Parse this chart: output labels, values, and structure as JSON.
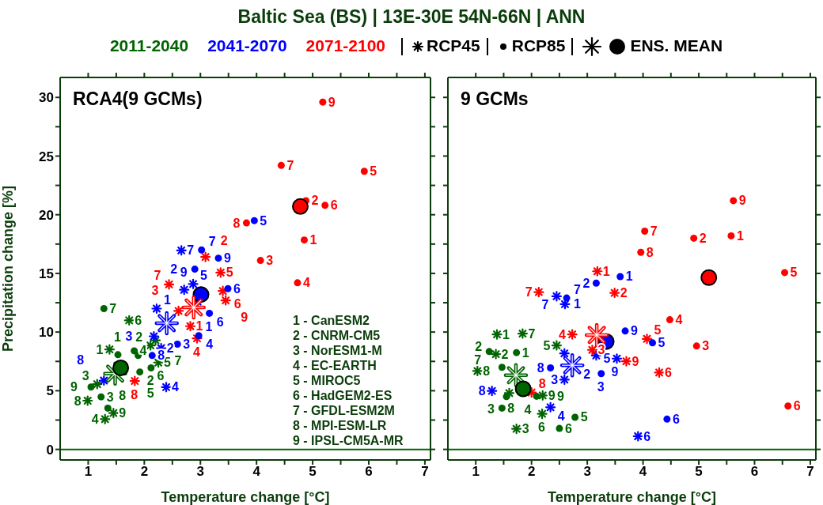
{
  "chart_data": [
    {
      "type": "scatter",
      "title": "Baltic Sea (BS) | 13E-30E 54N-66N | ANN",
      "subtitle": "RCA4(9 GCMs)",
      "xlabel": "Temperature change [°C]",
      "ylabel": "Precipitation change [%]",
      "legend": "top",
      "annotations": [
        "RCP45",
        "RCP85",
        "ENS. MEAN",
        "1 - CanESM2",
        "2 - CNRM-CM5",
        "3 - NorESM1-M",
        "4 - EC-EARTH",
        "5 - MIROC5",
        "6 - HadGEM2-ES",
        "7 - GFDL-ESM2M",
        "8 - MPI-ESM-LR",
        "9 - IPSL-CM5A-MR",
        {
          "text": "1",
          "x": 1.38,
          "y": 8.52
        },
        {
          "text": "2",
          "x": 2.11,
          "y": 8.86
        },
        {
          "text": "3",
          "x": 1.16,
          "y": 5.56
        },
        {
          "text": "4",
          "x": 1.3,
          "y": 2.58
        },
        {
          "text": "5",
          "x": 2.25,
          "y": 7.4
        },
        {
          "text": "6",
          "x": 1.73,
          "y": 11.0
        },
        {
          "text": "7",
          "x": 2.2,
          "y": 9.3
        },
        {
          "text": "8",
          "x": 0.99,
          "y": 4.15
        },
        {
          "text": "9",
          "x": 1.45,
          "y": 3.1
        },
        {
          "text": "1",
          "x": 1.53,
          "y": 8.07
        },
        {
          "text": "2",
          "x": 1.92,
          "y": 6.6
        },
        {
          "text": "3",
          "x": 1.23,
          "y": 4.48
        },
        {
          "text": "4",
          "x": 1.82,
          "y": 8.4
        },
        {
          "text": "5",
          "x": 2.12,
          "y": 6.95
        },
        {
          "text": "6",
          "x": 1.89,
          "y": 8.0
        },
        {
          "text": "7",
          "x": 1.28,
          "y": 12.0
        },
        {
          "text": "8",
          "x": 1.35,
          "y": 3.52
        },
        {
          "text": "9",
          "x": 1.05,
          "y": 5.31
        },
        {
          "text": "1",
          "x": 2.22,
          "y": 12.0
        },
        {
          "text": "2",
          "x": 2.3,
          "y": 8.63
        },
        {
          "text": "3",
          "x": 2.17,
          "y": 9.64
        },
        {
          "text": "4",
          "x": 2.39,
          "y": 5.31
        },
        {
          "text": "5",
          "x": 2.87,
          "y": 14.1
        },
        {
          "text": "6",
          "x": 2.95,
          "y": 12.6
        },
        {
          "text": "7",
          "x": 2.66,
          "y": 16.96
        },
        {
          "text": "8",
          "x": 1.28,
          "y": 5.87
        },
        {
          "text": "9",
          "x": 2.71,
          "y": 13.6
        },
        {
          "text": "1",
          "x": 3.16,
          "y": 11.6
        },
        {
          "text": "2",
          "x": 2.9,
          "y": 15.36
        },
        {
          "text": "3",
          "x": 2.59,
          "y": 8.97
        },
        {
          "text": "4",
          "x": 2.97,
          "y": 9.69
        },
        {
          "text": "5",
          "x": 3.96,
          "y": 19.5
        },
        {
          "text": "6",
          "x": 3.49,
          "y": 13.7
        },
        {
          "text": "7",
          "x": 3.02,
          "y": 17.0
        },
        {
          "text": "8",
          "x": 2.14,
          "y": 8.0
        },
        {
          "text": "9",
          "x": 3.32,
          "y": 16.3
        },
        {
          "text": "1",
          "x": 2.82,
          "y": 10.5
        },
        {
          "text": "2",
          "x": 3.09,
          "y": 16.4
        },
        {
          "text": "3",
          "x": 2.61,
          "y": 11.8
        },
        {
          "text": "4",
          "x": 2.94,
          "y": 9.46
        },
        {
          "text": "5",
          "x": 3.36,
          "y": 15.07
        },
        {
          "text": "6",
          "x": 3.4,
          "y": 13.5
        },
        {
          "text": "7",
          "x": 2.44,
          "y": 14.06
        },
        {
          "text": "8",
          "x": 1.83,
          "y": 5.83
        },
        {
          "text": "9",
          "x": 3.45,
          "y": 12.7
        },
        {
          "text": "1",
          "x": 4.85,
          "y": 17.85
        },
        {
          "text": "2",
          "x": 4.88,
          "y": 21.2
        },
        {
          "text": "3",
          "x": 4.07,
          "y": 16.1
        },
        {
          "text": "4",
          "x": 4.73,
          "y": 14.2
        },
        {
          "text": "5",
          "x": 5.92,
          "y": 23.7
        },
        {
          "text": "6",
          "x": 5.22,
          "y": 20.8
        },
        {
          "text": "7",
          "x": 4.44,
          "y": 24.2
        },
        {
          "text": "8",
          "x": 3.82,
          "y": 19.3
        },
        {
          "text": "9",
          "x": 5.18,
          "y": 29.6
        }
      ],
      "xlim": [
        0.5,
        7.1
      ],
      "ylim": [
        -0.9,
        31.7
      ],
      "xticks": [
        1,
        {
          "value": 1.5,
          "label": null
        },
        2,
        {
          "value": 2.5,
          "label": null
        },
        3,
        {
          "value": 3.5,
          "label": null
        },
        4,
        {
          "value": 4.5,
          "label": null
        },
        5,
        {
          "value": 5.5,
          "label": null
        },
        6,
        {
          "value": 6.5,
          "label": null
        },
        7
      ],
      "yticks": [
        0,
        {
          "value": 2.5,
          "label": null
        },
        5,
        {
          "value": 7.5,
          "label": null
        },
        10,
        {
          "value": 12.5,
          "label": null
        },
        15,
        {
          "value": 17.5,
          "label": null
        },
        20,
        {
          "value": 22.5,
          "label": null
        },
        25,
        {
          "value": 27.5,
          "label": null
        },
        30
      ],
      "ref_lines": [
        {
          "axis": "y",
          "value": 0,
          "color": "#006400"
        }
      ],
      "series": [
        {
          "name": "2011-2040",
          "color": "#006400",
          "marker": "cross",
          "x": [
            1.38,
            2.11,
            1.16,
            1.3,
            2.25,
            1.73,
            2.2,
            0.99,
            1.45
          ],
          "values": [
            8.52,
            8.86,
            5.56,
            2.58,
            7.4,
            11.0,
            9.3,
            4.15,
            3.1
          ]
        },
        {
          "color": "#006400",
          "marker": "circle",
          "x": [
            1.53,
            1.92,
            1.23,
            1.82,
            2.12,
            1.89,
            1.28,
            1.35,
            1.05
          ],
          "values": [
            8.07,
            6.6,
            4.48,
            8.4,
            6.95,
            8.0,
            12.0,
            3.52,
            5.31
          ]
        },
        {
          "name": "2041-2070",
          "color": "#0000ff",
          "marker": "cross",
          "x": [
            2.22,
            2.3,
            2.17,
            2.39,
            2.87,
            2.95,
            2.66,
            1.28,
            2.71
          ],
          "values": [
            12.0,
            8.63,
            9.64,
            5.31,
            14.1,
            12.6,
            16.96,
            5.87,
            13.6
          ]
        },
        {
          "color": "#0000ff",
          "marker": "circle",
          "x": [
            3.16,
            2.9,
            2.59,
            2.97,
            3.96,
            3.49,
            3.02,
            2.14,
            3.32
          ],
          "values": [
            11.6,
            15.36,
            8.97,
            9.69,
            19.5,
            13.7,
            17.0,
            8.0,
            16.3
          ]
        },
        {
          "name": "2071-2100",
          "color": "#ff0000",
          "marker": "cross",
          "x": [
            2.82,
            3.09,
            2.61,
            2.94,
            3.36,
            3.4,
            2.44,
            1.83,
            3.45
          ],
          "values": [
            10.5,
            16.4,
            11.8,
            9.46,
            15.07,
            13.5,
            14.06,
            5.83,
            12.7
          ]
        },
        {
          "color": "#ff0000",
          "marker": "circle",
          "x": [
            4.85,
            4.88,
            4.07,
            4.73,
            5.92,
            5.22,
            4.44,
            3.82,
            5.18
          ],
          "values": [
            17.85,
            21.2,
            16.1,
            14.2,
            23.7,
            20.8,
            24.2,
            19.3,
            29.6
          ]
        },
        {
          "color": "#006400",
          "marker": "cross",
          "x": [
            1.48
          ],
          "values": [
            6.46
          ]
        },
        {
          "color": "#006400",
          "marker": "circle",
          "x": [
            1.58
          ],
          "values": [
            6.95
          ]
        },
        {
          "color": "#0000ff",
          "marker": "cross",
          "x": [
            2.4
          ],
          "values": [
            10.76
          ]
        },
        {
          "color": "#0000ff",
          "marker": "circle",
          "x": [
            3.01
          ],
          "values": [
            13.2
          ]
        },
        {
          "color": "#ff0000",
          "marker": "cross",
          "x": [
            2.88
          ],
          "values": [
            12.1
          ]
        },
        {
          "color": "#ff0000",
          "marker": "circle",
          "x": [
            4.78
          ],
          "values": [
            20.7
          ]
        }
      ]
    },
    {
      "type": "scatter",
      "subtitle": "9 GCMs",
      "xlabel": "Temperature change [°C]",
      "tick_labels": "x",
      "annotations": [
        {
          "text": "1",
          "x": 1.38,
          "y": 9.8
        },
        {
          "text": "2",
          "x": 1.36,
          "y": 8.12
        },
        {
          "text": "3",
          "x": 1.73,
          "y": 1.75
        },
        {
          "text": "4",
          "x": 1.6,
          "y": 4.8
        },
        {
          "text": "5",
          "x": 2.45,
          "y": 8.86
        },
        {
          "text": "6",
          "x": 2.19,
          "y": 3.03
        },
        {
          "text": "7",
          "x": 1.84,
          "y": 9.87
        },
        {
          "text": "8",
          "x": 1.03,
          "y": 6.68
        },
        {
          "text": "9",
          "x": 2.2,
          "y": 4.6
        },
        {
          "text": "1",
          "x": 1.73,
          "y": 8.25
        },
        {
          "text": "2",
          "x": 1.47,
          "y": 7.0
        },
        {
          "text": "3",
          "x": 1.55,
          "y": 4.5
        },
        {
          "text": "5",
          "x": 2.78,
          "y": 2.74
        },
        {
          "text": "6",
          "x": 2.5,
          "y": 1.79
        },
        {
          "text": "7",
          "x": 1.24,
          "y": 8.34
        },
        {
          "text": "8",
          "x": 1.47,
          "y": 3.52
        },
        {
          "text": "9",
          "x": 2.09,
          "y": 4.53
        },
        {
          "text": "1",
          "x": 2.6,
          "y": 12.38
        },
        {
          "text": "2",
          "x": 2.59,
          "y": 8.18
        },
        {
          "text": "3",
          "x": 2.59,
          "y": 5.94
        },
        {
          "text": "4",
          "x": 2.34,
          "y": 3.59
        },
        {
          "text": "5",
          "x": 3.53,
          "y": 7.74
        },
        {
          "text": "6",
          "x": 3.91,
          "y": 1.12
        },
        {
          "text": "7",
          "x": 2.45,
          "y": 13.05
        },
        {
          "text": "8",
          "x": 1.29,
          "y": 4.98
        },
        {
          "text": "9",
          "x": 3.16,
          "y": 8.0
        },
        {
          "text": "1",
          "x": 3.59,
          "y": 14.73
        },
        {
          "text": "2",
          "x": 3.16,
          "y": 14.17
        },
        {
          "text": "3",
          "x": 3.25,
          "y": 6.46
        },
        {
          "text": "5",
          "x": 4.17,
          "y": 9.08
        },
        {
          "text": "6",
          "x": 4.43,
          "y": 2.58
        },
        {
          "text": "7",
          "x": 2.63,
          "y": 12.9
        },
        {
          "text": "8",
          "x": 2.34,
          "y": 6.95
        },
        {
          "text": "9",
          "x": 3.68,
          "y": 10.09
        },
        {
          "text": "1",
          "x": 3.18,
          "y": 15.18
        },
        {
          "text": "2",
          "x": 3.49,
          "y": 13.34
        },
        {
          "text": "3",
          "x": 3.09,
          "y": 8.48
        },
        {
          "text": "4",
          "x": 2.73,
          "y": 9.8
        },
        {
          "text": "5",
          "x": 4.07,
          "y": 9.42
        },
        {
          "text": "6",
          "x": 4.29,
          "y": 6.55
        },
        {
          "text": "7",
          "x": 2.13,
          "y": 13.4
        },
        {
          "text": "8",
          "x": 2.0,
          "y": 4.85
        },
        {
          "text": "9",
          "x": 3.7,
          "y": 7.51
        },
        {
          "text": "1",
          "x": 5.58,
          "y": 18.2
        },
        {
          "text": "2",
          "x": 4.91,
          "y": 18.0
        },
        {
          "text": "3",
          "x": 4.96,
          "y": 8.81
        },
        {
          "text": "4",
          "x": 4.48,
          "y": 11.05
        },
        {
          "text": "5",
          "x": 6.54,
          "y": 15.07
        },
        {
          "text": "6",
          "x": 6.6,
          "y": 3.7
        },
        {
          "text": "7",
          "x": 4.03,
          "y": 18.6
        },
        {
          "text": "8",
          "x": 3.96,
          "y": 16.8
        },
        {
          "text": "9",
          "x": 5.62,
          "y": 21.2
        }
      ],
      "xlim": [
        0.5,
        7.1
      ],
      "ylim": [
        -0.9,
        31.7
      ],
      "xticks": [
        1,
        {
          "value": 1.5,
          "label": null
        },
        2,
        {
          "value": 2.5,
          "label": null
        },
        3,
        {
          "value": 3.5,
          "label": null
        },
        4,
        {
          "value": 4.5,
          "label": null
        },
        5,
        {
          "value": 5.5,
          "label": null
        },
        6,
        {
          "value": 6.5,
          "label": null
        },
        7
      ],
      "yticks": [
        0,
        {
          "value": 2.5,
          "label": null
        },
        5,
        {
          "value": 7.5,
          "label": null
        },
        10,
        {
          "value": 12.5,
          "label": null
        },
        15,
        {
          "value": 17.5,
          "label": null
        },
        20,
        {
          "value": 22.5,
          "label": null
        },
        25,
        {
          "value": 27.5,
          "label": null
        },
        30
      ],
      "ref_lines": [
        {
          "axis": "y",
          "value": 0,
          "color": "#006400"
        }
      ],
      "series": [
        {
          "color": "#006400",
          "marker": "cross",
          "x": [
            1.38,
            1.36,
            1.73,
            1.6,
            2.45,
            2.19,
            1.84,
            1.03,
            2.2
          ],
          "values": [
            9.8,
            8.12,
            1.75,
            4.8,
            8.86,
            3.03,
            9.87,
            6.68,
            4.6
          ]
        },
        {
          "color": "#006400",
          "marker": "circle",
          "x": [
            1.73,
            1.47,
            1.55,
            null,
            2.78,
            2.5,
            1.24,
            1.47,
            2.09
          ],
          "values": [
            8.25,
            7.0,
            4.5,
            null,
            2.74,
            1.79,
            8.34,
            3.52,
            4.53
          ]
        },
        {
          "color": "#0000ff",
          "marker": "cross",
          "x": [
            2.6,
            2.59,
            2.59,
            2.34,
            3.53,
            3.91,
            2.45,
            1.29,
            3.16
          ],
          "values": [
            12.38,
            8.18,
            5.94,
            3.59,
            7.74,
            1.12,
            13.05,
            4.98,
            8.0
          ]
        },
        {
          "color": "#0000ff",
          "marker": "circle",
          "x": [
            3.59,
            3.16,
            3.25,
            null,
            4.17,
            4.43,
            2.63,
            2.34,
            3.68
          ],
          "values": [
            14.73,
            14.17,
            6.46,
            null,
            9.08,
            2.58,
            12.9,
            6.95,
            10.09
          ]
        },
        {
          "color": "#ff0000",
          "marker": "cross",
          "x": [
            3.18,
            3.49,
            3.09,
            2.73,
            4.07,
            4.29,
            2.13,
            2.0,
            3.7
          ],
          "values": [
            15.18,
            13.34,
            8.48,
            9.8,
            9.42,
            6.55,
            13.4,
            4.85,
            7.51
          ]
        },
        {
          "color": "#ff0000",
          "marker": "circle",
          "x": [
            5.58,
            4.91,
            4.96,
            4.48,
            6.54,
            6.6,
            4.03,
            3.96,
            5.62
          ],
          "values": [
            18.2,
            18.0,
            8.81,
            11.05,
            15.07,
            3.7,
            18.6,
            16.8,
            21.2
          ]
        },
        {
          "color": "#006400",
          "marker": "cross",
          "x": [
            1.72
          ],
          "values": [
            6.32
          ]
        },
        {
          "color": "#006400",
          "marker": "circle",
          "x": [
            1.85
          ],
          "values": [
            5.16
          ]
        },
        {
          "color": "#0000ff",
          "marker": "cross",
          "x": [
            2.73
          ],
          "values": [
            7.17
          ]
        },
        {
          "color": "#0000ff",
          "marker": "circle",
          "x": [
            3.34
          ],
          "values": [
            9.19
          ]
        },
        {
          "color": "#ff0000",
          "marker": "cross",
          "x": [
            3.17
          ],
          "values": [
            9.75
          ]
        },
        {
          "color": "#ff0000",
          "marker": "circle",
          "x": [
            5.18
          ],
          "values": [
            14.64
          ]
        }
      ]
    }
  ]
}
